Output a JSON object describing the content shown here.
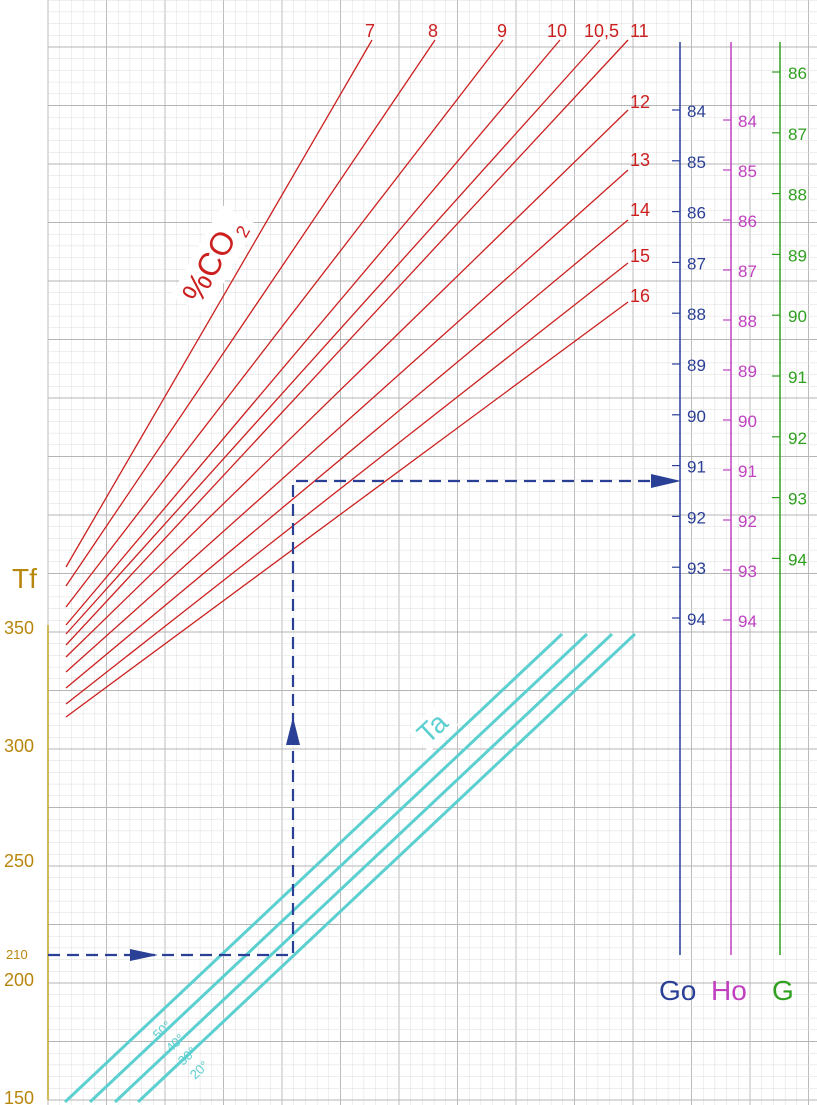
{
  "chart_data": {
    "type": "line",
    "title": "",
    "y_axis": {
      "label": "Tf",
      "ticks": [
        "150",
        "200",
        "250",
        "300",
        "350"
      ],
      "marker": "210",
      "ylim": [
        150,
        360
      ],
      "color": "#b8860b"
    },
    "co2_family": {
      "label": "%CO2",
      "label_main": "%CO",
      "label_sub": "2",
      "color": "#cc2020",
      "series": [
        {
          "name": "7"
        },
        {
          "name": "8"
        },
        {
          "name": "9"
        },
        {
          "name": "10"
        },
        {
          "name": "10,5"
        },
        {
          "name": "11"
        },
        {
          "name": "12"
        },
        {
          "name": "13"
        },
        {
          "name": "14"
        },
        {
          "name": "15"
        },
        {
          "name": "16"
        }
      ]
    },
    "ta_family": {
      "label": "Ta",
      "color": "#5ccfd0",
      "series": [
        {
          "name": "50°"
        },
        {
          "name": "40°"
        },
        {
          "name": "30°"
        },
        {
          "name": "20°"
        }
      ]
    },
    "scales": [
      {
        "name": "Go",
        "color": "#2a3f96",
        "ticks": [
          "84",
          "85",
          "86",
          "87",
          "88",
          "89",
          "90",
          "91",
          "92",
          "93",
          "94"
        ]
      },
      {
        "name": "Ho",
        "color": "#c040c0",
        "ticks": [
          "84",
          "85",
          "86",
          "87",
          "88",
          "89",
          "90",
          "91",
          "92",
          "93",
          "94"
        ]
      },
      {
        "name": "G",
        "color": "#30a020",
        "ticks": [
          "86",
          "87",
          "88",
          "89",
          "90",
          "91",
          "92",
          "93",
          "94"
        ]
      }
    ],
    "example_path": {
      "color": "#2a3f96",
      "Tf": 210,
      "Go": 91.3
    },
    "grid": true
  }
}
